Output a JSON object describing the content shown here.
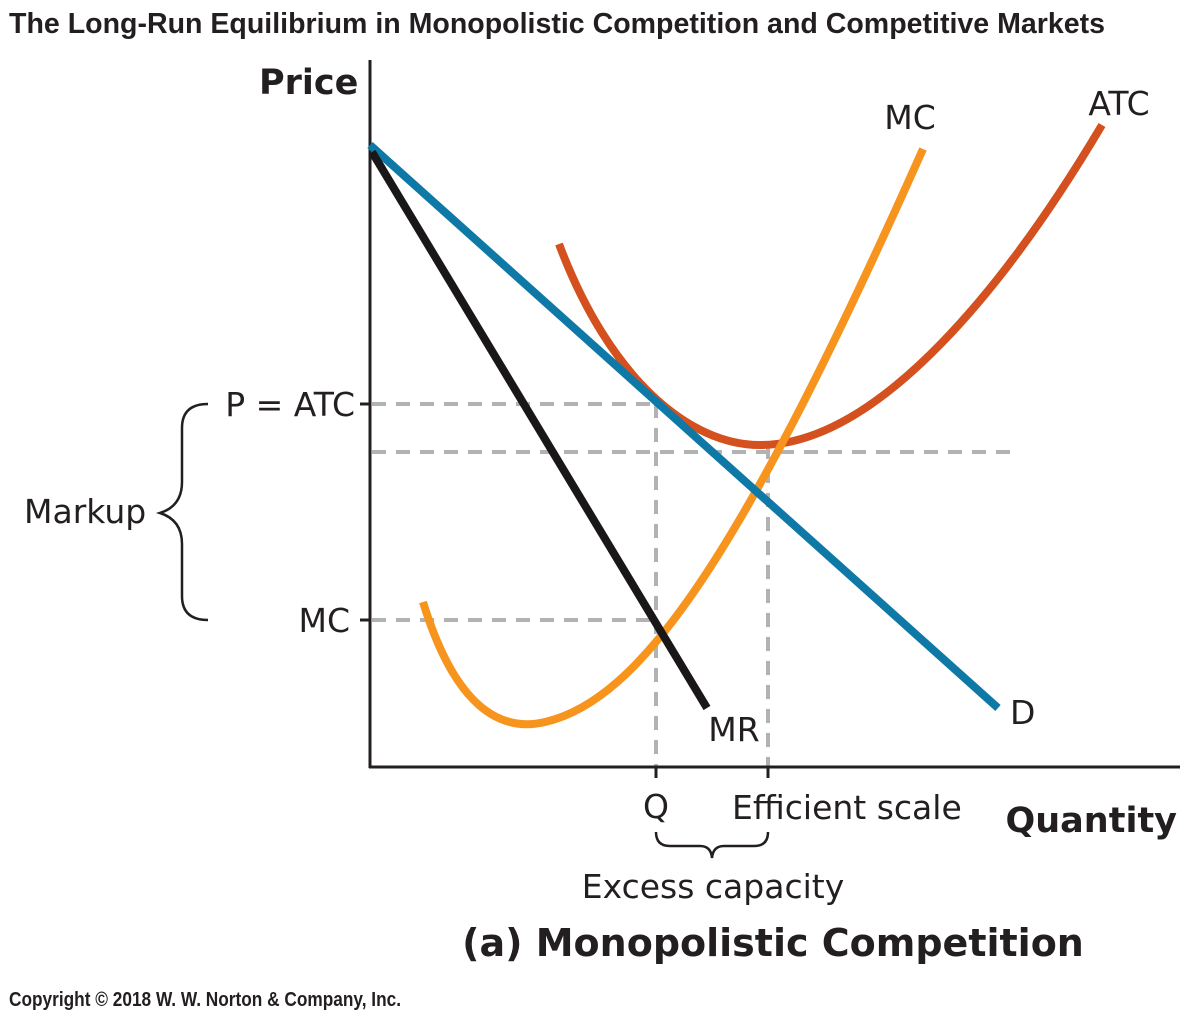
{
  "title": "The Long-Run Equilibrium in Monopolistic Competition and Competitive Markets",
  "axes": {
    "y_label": "Price",
    "x_label": "Quantity"
  },
  "y_ticks": {
    "price": "P = ATC",
    "mc": "MC"
  },
  "x_ticks": {
    "q": "Q",
    "efficient": "Efficient scale"
  },
  "brackets": {
    "markup": "Markup",
    "excess_capacity": "Excess capacity"
  },
  "curves": {
    "demand": {
      "label": "D",
      "color": "#0e78a6"
    },
    "mr": {
      "label": "MR",
      "color": "#1a1718"
    },
    "mc": {
      "label": "MC",
      "color": "#f7941d"
    },
    "atc": {
      "label": "ATC",
      "color": "#d4501f"
    }
  },
  "guide_color": "#b2b2b2",
  "panel_caption": "(a) Monopolistic Competition",
  "copyright": "Copyright © 2018 W. W. Norton & Company, Inc."
}
